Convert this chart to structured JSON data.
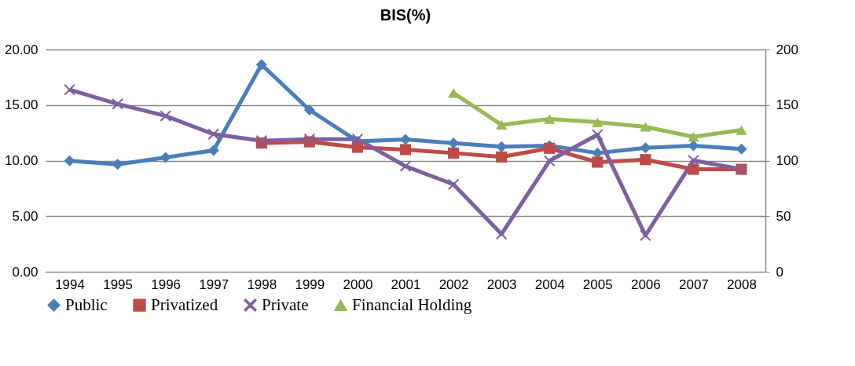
{
  "chart_data": {
    "type": "line",
    "title": "BIS(%)",
    "categories": [
      "1994",
      "1995",
      "1996",
      "1997",
      "1998",
      "1999",
      "2000",
      "2001",
      "2002",
      "2003",
      "2004",
      "2005",
      "2006",
      "2007",
      "2008"
    ],
    "series": [
      {
        "name": "Public",
        "color": "#4a7ebb",
        "marker": "diamond",
        "values": [
          9.98,
          9.67,
          10.28,
          10.92,
          18.64,
          14.56,
          11.74,
          11.9,
          11.58,
          11.25,
          11.34,
          10.68,
          11.15,
          11.34,
          11.04
        ]
      },
      {
        "name": "Privatized",
        "color": "#be4b48",
        "marker": "square",
        "values": [
          null,
          null,
          null,
          null,
          11.58,
          11.69,
          11.2,
          10.99,
          10.68,
          10.33,
          11.11,
          9.86,
          10.09,
          9.22,
          9.22
        ]
      },
      {
        "name": "Private",
        "color": "#7d60a0",
        "marker": "cross",
        "values": [
          16.38,
          15.1,
          14.02,
          12.38,
          11.79,
          11.93,
          11.93,
          9.5,
          7.86,
          3.39,
          9.98,
          12.33,
          3.27,
          10.02,
          9.22
        ]
      },
      {
        "name": "Financial Holding",
        "color": "#98b954",
        "marker": "triangle",
        "values": [
          null,
          null,
          null,
          null,
          null,
          null,
          null,
          null,
          16.09,
          13.22,
          13.74,
          13.46,
          13.04,
          12.14,
          12.75
        ]
      }
    ],
    "ylim": [
      0,
      20
    ],
    "yticks": [
      {
        "value": 0,
        "label": "0.00"
      },
      {
        "value": 5,
        "label": "5.00"
      },
      {
        "value": 10,
        "label": "10.00"
      },
      {
        "value": 15,
        "label": "15.00"
      },
      {
        "value": 20,
        "label": "20.00"
      }
    ],
    "y2lim": [
      0,
      200
    ],
    "y2ticks": [
      0,
      50,
      100,
      150,
      200
    ],
    "grid": "y",
    "legend": "bottom"
  }
}
